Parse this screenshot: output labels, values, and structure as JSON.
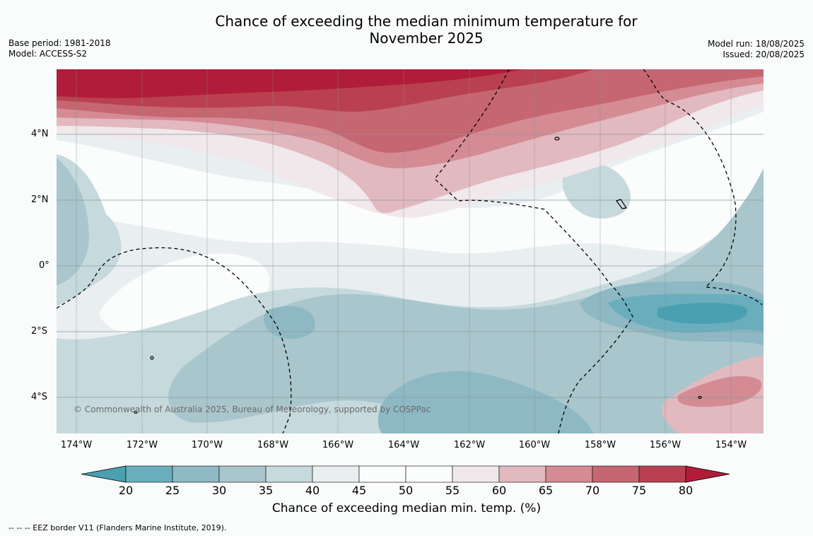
{
  "title_line1": "Chance of exceeding the median minimum temperature for",
  "title_line2": "November 2025",
  "meta_left": {
    "base_period": "Base period: 1981-2018",
    "model": "Model: ACCESS-S2"
  },
  "meta_right": {
    "model_run": "Model run: 18/08/2025",
    "issued": "Issued: 20/08/2025"
  },
  "lat_labels": [
    "4°N",
    "2°N",
    "0°",
    "2°S",
    "4°S"
  ],
  "lon_labels": [
    "174°W",
    "172°W",
    "170°W",
    "168°W",
    "166°W",
    "164°W",
    "162°W",
    "160°W",
    "158°W",
    "156°W",
    "154°W"
  ],
  "copyright": "© Commonwealth of Australia 2025, Bureau of Meteorology, supported by COSPPac",
  "colorbar": {
    "ticks": [
      "20",
      "25",
      "30",
      "35",
      "40",
      "45",
      "50",
      "55",
      "60",
      "65",
      "70",
      "75",
      "80"
    ],
    "label": "Chance of exceeding median min. temp. (%)",
    "colors": [
      "#4aa0b0",
      "#6aaebd",
      "#8db8c4",
      "#a9c6cc",
      "#c6d9dc",
      "#e9eff1",
      "#fbfcfc",
      "#fbfcfc",
      "#f0e8ea",
      "#e2b9bf",
      "#d48b94",
      "#c66670",
      "#b9414f",
      "#b01c39"
    ]
  },
  "footnote": "--  --  -- EEZ border V11 (Flanders Marine Institute, 2019)."
}
